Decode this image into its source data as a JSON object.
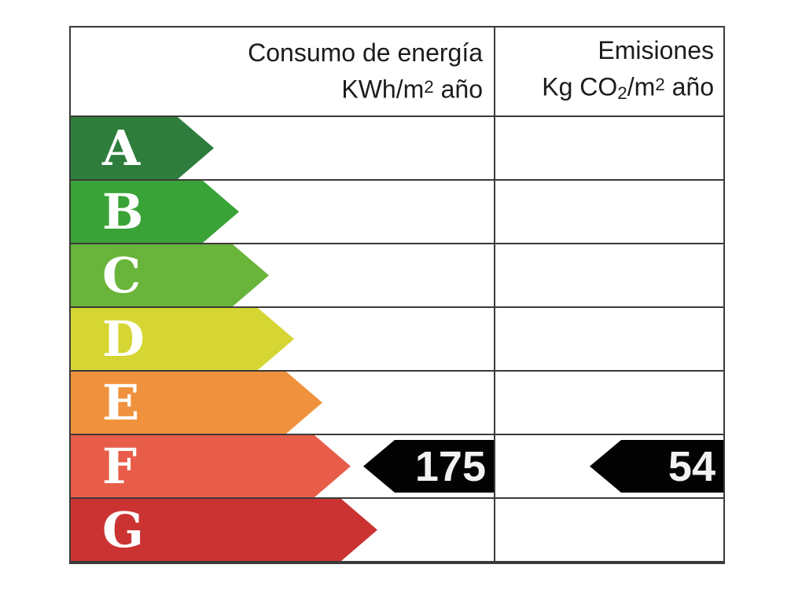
{
  "page": {
    "background": "#ffffff"
  },
  "table": {
    "border_color": "#3a3a3a"
  },
  "header": {
    "consumo": {
      "title": "Consumo de energía",
      "unit_prefix": "KWh/m",
      "unit_exponent": "2",
      "unit_suffix": " año"
    },
    "emisiones": {
      "title": "Emisiones",
      "unit_prefix": "Kg CO",
      "unit_subscript": "2",
      "unit_mid": "/m",
      "unit_exponent": "2",
      "unit_suffix": " año"
    }
  },
  "ratings": [
    {
      "letter": "A",
      "color": "#2e7d3c"
    },
    {
      "letter": "B",
      "color": "#3aa338"
    },
    {
      "letter": "C",
      "color": "#69b43a"
    },
    {
      "letter": "D",
      "color": "#d5d634"
    },
    {
      "letter": "E",
      "color": "#f0923d"
    },
    {
      "letter": "F",
      "color": "#e85d49"
    },
    {
      "letter": "G",
      "color": "#cb3333"
    }
  ],
  "indicators": {
    "selected_rating": "F",
    "consumo_value": "175",
    "emisiones_value": "54",
    "arrow_color": "#030303",
    "value_text_color": "#f2f2f2"
  },
  "chart_data": {
    "type": "bar",
    "title": "",
    "categories": [
      "A",
      "B",
      "C",
      "D",
      "E",
      "F",
      "G"
    ],
    "series": [
      {
        "name": "Consumo de energía KWh/m2 año",
        "rating": "F",
        "value": 175
      },
      {
        "name": "Emisiones Kg CO2/m2 año",
        "rating": "F",
        "value": 54
      }
    ],
    "bar_colors": [
      "#2e7d3c",
      "#3aa338",
      "#69b43a",
      "#d5d634",
      "#f0923d",
      "#e85d49",
      "#cb3333"
    ],
    "legend": "none",
    "grid": "table-lines",
    "orientation": "horizontal"
  }
}
